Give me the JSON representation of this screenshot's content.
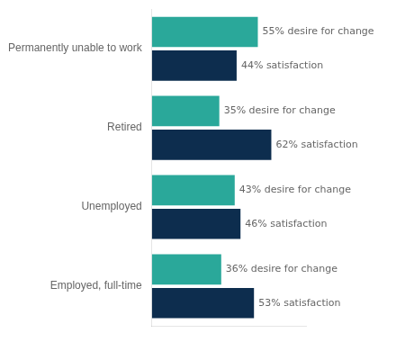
{
  "chart_data": {
    "type": "bar",
    "orientation": "horizontal",
    "categories": [
      "Permanently unable to work",
      "Retired",
      "Unemployed",
      "Employed, full-time"
    ],
    "series": [
      {
        "color": "#2aA89A",
        "values": [
          55,
          35,
          43,
          36
        ],
        "value_labels": [
          "55% desire for change",
          "35% desire for change",
          "43% desire for change",
          "36% desire for change"
        ]
      },
      {
        "color": "#0D2D4E",
        "values": [
          44,
          62,
          46,
          53
        ],
        "value_labels": [
          "44% satisfaction",
          "62% satisfaction",
          "46% satisfaction",
          "53% satisfaction"
        ]
      }
    ],
    "xlim": [
      0,
      80
    ],
    "grid": false,
    "tick_labels": "y",
    "data_labels": true
  }
}
